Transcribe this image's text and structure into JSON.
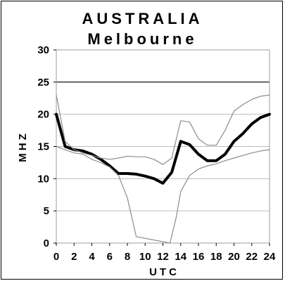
{
  "chart_data": {
    "type": "line",
    "title": "AUSTRALIA",
    "subtitle": "Melbourne",
    "xlabel": "UTC",
    "ylabel": "MHZ",
    "xlim": [
      0,
      24
    ],
    "ylim": [
      0,
      30
    ],
    "x_ticks": [
      0,
      2,
      4,
      6,
      8,
      10,
      12,
      14,
      16,
      18,
      20,
      22,
      24
    ],
    "y_ticks": [
      0,
      5,
      10,
      15,
      20,
      25,
      30
    ],
    "grid": true,
    "series": [
      {
        "role": "main",
        "x": [
          0,
          1,
          2,
          3,
          4,
          5,
          6,
          7,
          8,
          9,
          10,
          11,
          12,
          13,
          14,
          15,
          16,
          17,
          18,
          19,
          20,
          21,
          22,
          23,
          24
        ],
        "y": [
          20,
          15,
          14.5,
          14.3,
          13.8,
          13,
          12,
          10.8,
          10.8,
          10.7,
          10.4,
          10,
          9.3,
          11,
          15.8,
          15.3,
          13.8,
          12.8,
          12.8,
          13.8,
          15.8,
          17,
          18.5,
          19.5,
          20
        ]
      },
      {
        "role": "upper",
        "x": [
          0,
          1,
          2,
          3,
          4,
          5,
          6,
          7,
          8,
          9,
          10,
          11,
          12,
          13,
          14,
          15,
          16,
          17,
          18,
          19,
          20,
          21,
          22,
          23,
          24
        ],
        "y": [
          23,
          15.8,
          14.5,
          14,
          13.6,
          13.2,
          13,
          13.2,
          13.5,
          13.4,
          13.4,
          13,
          12.2,
          13.2,
          19,
          18.8,
          16.2,
          15.2,
          15.2,
          17.5,
          20.5,
          21.5,
          22.3,
          22.8,
          23
        ]
      },
      {
        "role": "lower",
        "x": [
          0,
          1,
          2,
          3,
          4,
          5,
          6,
          7,
          8,
          9,
          12.8,
          13.5,
          14,
          15,
          16,
          17,
          18,
          19,
          20,
          21,
          22,
          23,
          24
        ],
        "y": [
          15,
          14.5,
          14,
          13.8,
          13,
          12.5,
          11.8,
          10.5,
          7,
          1,
          0,
          4,
          8,
          10.5,
          11.5,
          12,
          12.3,
          12.8,
          13.2,
          13.6,
          14,
          14.3,
          14.5
        ]
      }
    ]
  }
}
